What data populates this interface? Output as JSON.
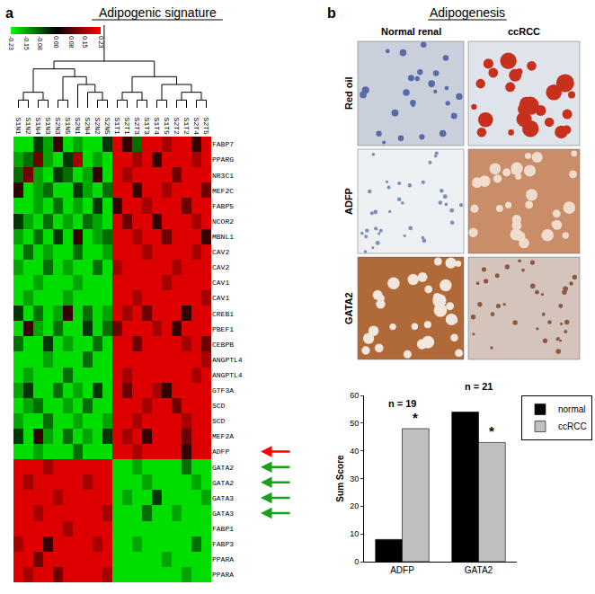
{
  "chart_data": [
    {
      "type": "heatmap",
      "title": "Adipogenic signature",
      "annotations": [
        {
          "text": "a"
        }
      ],
      "categories": [
        "S1N1",
        "S1N2",
        "S1N4",
        "S1N3",
        "S2N3",
        "S1N5",
        "S2N1",
        "S2N4",
        "S2N2",
        "S2N5",
        "S1T1",
        "S2T1",
        "S2T3",
        "S1T3",
        "S1T4",
        "S1T5",
        "S2T2",
        "S1T2",
        "S2T4",
        "S2T5"
      ],
      "rows": [
        "FABP7",
        "PPARG",
        "NR3C1",
        "MEF2C",
        "FABP5",
        "NCOR2",
        "MBNL1",
        "CAV2",
        "CAV2",
        "CAV1",
        "CAV1",
        "CREB1",
        "PBEF1",
        "CEBPB",
        "ANGPTL4",
        "ANGPTL4",
        "GTF3A",
        "SCD",
        "SCD",
        "MEF2A",
        "ADFP",
        "GATA2",
        "GATA2",
        "GATA3",
        "GATA3",
        "FABP1",
        "FABP3",
        "PPARA",
        "PPARA"
      ],
      "cells": [
        [
          -0.2,
          -0.2,
          -0.05,
          -0.15,
          0.05,
          -0.2,
          -0.15,
          -0.2,
          -0.2,
          -0.05,
          0.2,
          0.05,
          -0.1,
          0.2,
          0.2,
          0.15,
          0.2,
          0.2,
          0.05,
          0.2
        ],
        [
          -0.15,
          -0.1,
          0.1,
          -0.15,
          -0.2,
          -0.05,
          0.15,
          -0.2,
          -0.15,
          -0.2,
          0.2,
          0.2,
          0.15,
          0.2,
          0.05,
          0.2,
          0.2,
          0.2,
          0.15,
          0.2
        ],
        [
          -0.1,
          0.1,
          -0.15,
          -0.2,
          -0.05,
          -0.1,
          -0.2,
          -0.15,
          0.05,
          -0.2,
          0.2,
          0.15,
          0.2,
          0.2,
          0.2,
          0.2,
          0.1,
          0.2,
          0.2,
          0.2
        ],
        [
          0.05,
          -0.2,
          -0.15,
          -0.1,
          -0.2,
          -0.2,
          -0.05,
          -0.15,
          -0.2,
          -0.1,
          0.2,
          0.2,
          0.05,
          0.2,
          0.2,
          0.15,
          0.2,
          0.2,
          0.2,
          0.1
        ],
        [
          -0.2,
          -0.2,
          -0.15,
          -0.2,
          -0.1,
          -0.2,
          -0.15,
          -0.2,
          -0.05,
          -0.2,
          0.05,
          0.2,
          0.2,
          0.15,
          0.2,
          0.2,
          0.2,
          0.1,
          0.2,
          0.2
        ],
        [
          -0.05,
          -0.15,
          -0.2,
          -0.1,
          -0.2,
          -0.15,
          -0.2,
          -0.1,
          -0.15,
          -0.2,
          0.2,
          0.1,
          0.2,
          0.2,
          0.05,
          0.2,
          0.2,
          0.2,
          0.15,
          0.2
        ],
        [
          -0.15,
          -0.2,
          -0.1,
          -0.2,
          -0.05,
          -0.2,
          0.05,
          -0.2,
          -0.15,
          -0.1,
          0.2,
          0.2,
          0.15,
          0.2,
          0.2,
          0.1,
          0.2,
          0.2,
          0.2,
          0.05
        ],
        [
          -0.2,
          -0.1,
          -0.2,
          -0.15,
          -0.2,
          -0.2,
          -0.1,
          -0.2,
          -0.2,
          -0.15,
          0.2,
          0.2,
          0.2,
          0.15,
          0.2,
          0.2,
          0.2,
          0.2,
          0.15,
          0.2
        ],
        [
          -0.15,
          -0.2,
          -0.2,
          -0.1,
          -0.2,
          -0.15,
          -0.2,
          -0.2,
          -0.1,
          -0.2,
          0.15,
          0.2,
          0.2,
          0.2,
          0.2,
          0.2,
          0.15,
          0.2,
          0.2,
          0.2
        ],
        [
          -0.2,
          -0.2,
          -0.15,
          -0.2,
          -0.2,
          -0.2,
          -0.15,
          -0.2,
          -0.2,
          -0.2,
          0.2,
          0.2,
          0.2,
          0.2,
          0.2,
          0.15,
          0.2,
          0.2,
          0.2,
          0.2
        ],
        [
          -0.2,
          -0.15,
          -0.2,
          -0.2,
          -0.2,
          -0.15,
          -0.2,
          -0.2,
          -0.2,
          -0.2,
          0.2,
          0.2,
          0.15,
          0.2,
          0.2,
          0.2,
          0.2,
          0.2,
          0.2,
          0.15
        ],
        [
          -0.05,
          -0.2,
          -0.1,
          -0.2,
          -0.15,
          0.05,
          -0.2,
          -0.1,
          -0.2,
          -0.15,
          0.2,
          0.15,
          0.2,
          0.1,
          0.2,
          0.2,
          0.2,
          0.05,
          0.2,
          0.2
        ],
        [
          -0.2,
          0.05,
          -0.15,
          -0.2,
          -0.1,
          -0.2,
          -0.2,
          -0.05,
          -0.2,
          -0.1,
          0.1,
          0.2,
          0.2,
          0.2,
          0.15,
          0.2,
          0.05,
          0.2,
          0.2,
          0.2
        ],
        [
          -0.1,
          -0.2,
          -0.2,
          -0.05,
          -0.2,
          -0.15,
          -0.2,
          -0.2,
          -0.1,
          -0.2,
          0.2,
          0.2,
          0.1,
          0.2,
          0.2,
          0.2,
          0.2,
          0.15,
          0.2,
          0.1
        ],
        [
          -0.2,
          -0.2,
          -0.2,
          -0.15,
          -0.2,
          -0.2,
          -0.2,
          -0.1,
          -0.2,
          -0.2,
          0.2,
          0.2,
          0.2,
          0.2,
          0.2,
          0.2,
          0.2,
          0.2,
          0.2,
          0.15
        ],
        [
          -0.2,
          -0.15,
          -0.2,
          -0.2,
          -0.2,
          -0.1,
          -0.2,
          -0.2,
          -0.2,
          -0.2,
          0.2,
          0.15,
          0.2,
          0.2,
          0.2,
          0.2,
          0.2,
          0.2,
          0.15,
          0.2
        ],
        [
          -0.15,
          -0.05,
          -0.2,
          -0.2,
          -0.1,
          -0.2,
          -0.15,
          -0.2,
          -0.05,
          -0.2,
          0.2,
          0.1,
          0.2,
          0.2,
          0.15,
          0.05,
          0.2,
          0.2,
          0.2,
          0.2
        ],
        [
          -0.2,
          -0.15,
          -0.1,
          -0.2,
          -0.2,
          -0.15,
          -0.2,
          -0.1,
          -0.2,
          -0.2,
          0.2,
          0.2,
          0.2,
          0.15,
          0.2,
          0.2,
          0.1,
          0.2,
          0.2,
          0.2
        ],
        [
          -0.15,
          -0.2,
          -0.2,
          -0.1,
          -0.2,
          -0.2,
          -0.15,
          -0.2,
          -0.2,
          -0.15,
          0.2,
          0.2,
          0.15,
          0.2,
          0.2,
          0.2,
          0.2,
          0.15,
          0.2,
          0.2
        ],
        [
          -0.05,
          -0.2,
          0.05,
          -0.15,
          -0.2,
          -0.1,
          -0.2,
          -0.15,
          -0.2,
          -0.05,
          0.2,
          0.15,
          0.2,
          0.05,
          0.2,
          0.2,
          0.2,
          0.1,
          0.2,
          0.2
        ],
        [
          -0.2,
          -0.2,
          -0.15,
          -0.2,
          -0.2,
          -0.2,
          -0.1,
          -0.2,
          -0.2,
          -0.2,
          0.2,
          0.2,
          0.15,
          0.2,
          0.2,
          0.2,
          0.2,
          0.05,
          0.2,
          0.2
        ],
        [
          0.2,
          0.2,
          0.2,
          0.15,
          0.2,
          0.2,
          0.2,
          0.2,
          0.2,
          0.2,
          -0.2,
          -0.2,
          -0.15,
          -0.2,
          -0.2,
          -0.2,
          -0.2,
          -0.1,
          -0.2,
          -0.2
        ],
        [
          0.2,
          0.15,
          0.2,
          0.2,
          0.2,
          0.2,
          0.2,
          0.15,
          0.2,
          0.2,
          -0.2,
          -0.2,
          -0.2,
          -0.15,
          -0.2,
          -0.2,
          -0.2,
          -0.2,
          -0.15,
          -0.2
        ],
        [
          0.2,
          0.2,
          0.2,
          0.2,
          0.15,
          0.2,
          0.2,
          0.2,
          0.2,
          0.2,
          -0.2,
          -0.15,
          -0.2,
          -0.2,
          -0.05,
          -0.2,
          -0.2,
          -0.2,
          -0.2,
          -0.15
        ],
        [
          0.2,
          0.2,
          0.15,
          0.2,
          0.2,
          0.2,
          0.2,
          0.2,
          0.2,
          0.15,
          -0.2,
          -0.2,
          -0.2,
          -0.1,
          -0.2,
          -0.2,
          -0.15,
          -0.2,
          -0.2,
          -0.2
        ],
        [
          0.2,
          0.2,
          0.2,
          0.2,
          0.2,
          0.15,
          0.2,
          0.2,
          0.2,
          0.2,
          -0.2,
          -0.2,
          -0.2,
          -0.2,
          -0.2,
          -0.2,
          -0.2,
          -0.2,
          -0.2,
          -0.2
        ],
        [
          0.15,
          0.2,
          0.2,
          0.05,
          0.2,
          0.2,
          0.2,
          0.2,
          0.15,
          0.2,
          -0.2,
          -0.2,
          -0.15,
          -0.2,
          -0.2,
          -0.2,
          -0.2,
          -0.2,
          -0.1,
          -0.2
        ],
        [
          0.2,
          0.2,
          0.1,
          0.2,
          0.2,
          0.2,
          0.2,
          0.2,
          0.2,
          0.2,
          -0.2,
          -0.2,
          -0.2,
          -0.2,
          -0.2,
          -0.15,
          -0.2,
          -0.2,
          -0.2,
          -0.2
        ],
        [
          0.2,
          0.15,
          0.2,
          0.2,
          0.1,
          0.2,
          0.2,
          0.2,
          0.2,
          0.15,
          -0.2,
          -0.2,
          -0.2,
          -0.2,
          -0.2,
          -0.2,
          -0.2,
          -0.15,
          -0.2,
          -0.2
        ]
      ],
      "colorbar": {
        "range": [
          -0.23,
          0.23
        ],
        "ticks": [
          -0.23,
          -0.15,
          -0.08,
          {
            "value": 0,
            "label": "0.00"
          },
          0.08,
          0.15,
          0.23
        ]
      }
    },
    {
      "type": "bar",
      "categories": [
        "ADFP",
        "GATA2"
      ],
      "series": [
        {
          "name": "normal",
          "color": "#000000",
          "values": [
            8,
            54
          ]
        },
        {
          "name": "ccRCC",
          "color": "#c0c0c0",
          "values": [
            48,
            43
          ]
        }
      ],
      "ylabel": "Sum Score",
      "ylim": [
        0,
        60
      ],
      "yticks": [
        0,
        10,
        20,
        30,
        40,
        50,
        60
      ],
      "grid": false,
      "legend": "top right",
      "annotations": [
        {
          "text": "n = 19",
          "category": "ADFP"
        },
        {
          "text": "n = 21",
          "category": "GATA2"
        },
        {
          "text": "*",
          "category": "ADFP",
          "series": "ccRCC"
        },
        {
          "text": "*",
          "category": "GATA2",
          "series": "ccRCC"
        }
      ]
    }
  ],
  "micrographs": {
    "panel": "b",
    "title": "Adipogenesis",
    "columns": [
      "Normal renal",
      "ccRCC"
    ],
    "rows": [
      "Red oil",
      "ADFP",
      "GATA2"
    ]
  }
}
